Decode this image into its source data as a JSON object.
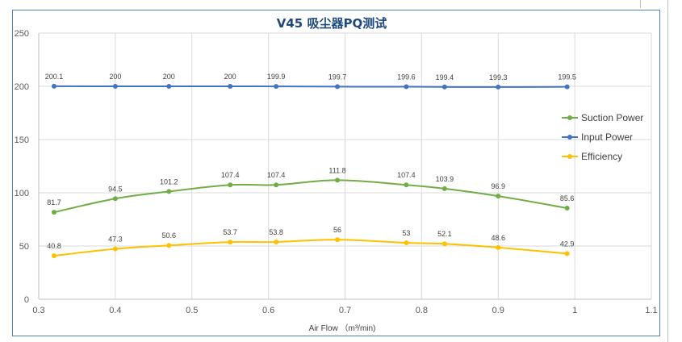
{
  "chart_data": {
    "type": "line",
    "title": "V45 吸尘器PQ测试",
    "xlabel": "Air Flow （m³/min)",
    "ylabel": "",
    "xlim": [
      0.3,
      1.1
    ],
    "ylim": [
      0,
      250
    ],
    "x_ticks": [
      "0.3",
      "0.4",
      "0.5",
      "0.6",
      "0.7",
      "0.8",
      "0.9",
      "1",
      "1.1"
    ],
    "y_ticks": [
      "0",
      "50",
      "100",
      "150",
      "200",
      "250"
    ],
    "grid": true,
    "legend_position": "right",
    "x": [
      0.32,
      0.4,
      0.47,
      0.55,
      0.61,
      0.69,
      0.78,
      0.83,
      0.9,
      0.99
    ],
    "series": [
      {
        "name": "Input Power",
        "color": "#4472c4",
        "values": [
          200.1,
          200,
          200,
          200,
          199.9,
          199.7,
          199.6,
          199.4,
          199.3,
          199.5
        ],
        "labels": [
          "200.1",
          "200",
          "200",
          "200",
          "199.9",
          "199.7",
          "199.6",
          "199.4",
          "199.3",
          "199.5"
        ]
      },
      {
        "name": "Suction Power",
        "color": "#70ad47",
        "values": [
          81.7,
          94.5,
          101.2,
          107.4,
          107.4,
          111.8,
          107.4,
          103.9,
          96.9,
          85.6
        ],
        "labels": [
          "81.7",
          "94.5",
          "101.2",
          "107.4",
          "107.4",
          "111.8",
          "107.4",
          "103.9",
          "96.9",
          "85.6"
        ]
      },
      {
        "name": "Efficiency",
        "color": "#ffc000",
        "values": [
          40.8,
          47.3,
          50.6,
          53.7,
          53.8,
          56,
          53,
          52.1,
          48.6,
          42.9
        ],
        "labels": [
          "40.8",
          "47.3",
          "50.6",
          "53.7",
          "53.8",
          "56",
          "53",
          "52.1",
          "48.6",
          "42.9"
        ]
      }
    ],
    "legend_order": [
      "Suction Power",
      "Input Power",
      "Efficiency"
    ]
  }
}
